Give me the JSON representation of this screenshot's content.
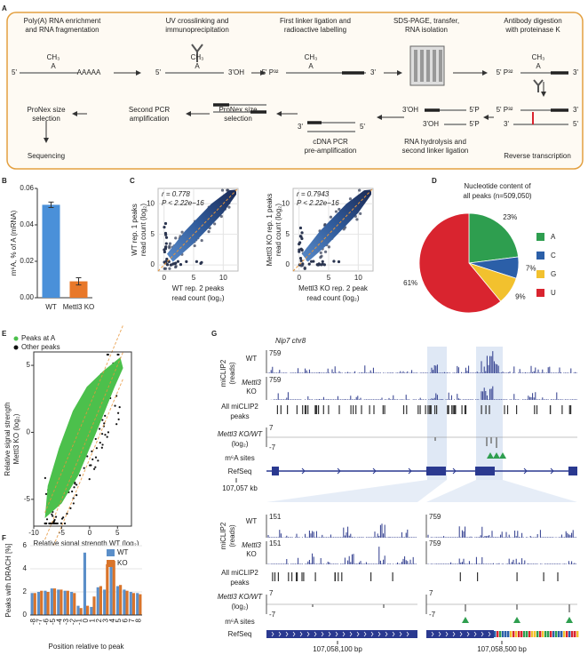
{
  "panel_labels": [
    "A",
    "B",
    "C",
    "D",
    "E",
    "F",
    "G"
  ],
  "workflow": {
    "steps": [
      [
        "Poly(A) RNA enrichment",
        "and RNA fragmentation"
      ],
      [
        "UV crosslinking and",
        "immunoprecipitation"
      ],
      [
        "First linker ligation and",
        "radioactive labelling"
      ],
      [
        "SDS-PAGE, transfer,",
        "RNA isolation"
      ],
      [
        "Antibody digestion",
        "with proteinase K"
      ],
      [
        "Reverse transcription"
      ],
      [
        "RNA hydrolysis and",
        "second linker ligation"
      ],
      [
        "cDNA PCR",
        "pre-amplification"
      ],
      [
        "ProNex size",
        "selection"
      ],
      [
        "Second PCR",
        "amplification"
      ],
      [
        "ProNex size",
        "selection"
      ],
      [
        "Sequencing"
      ]
    ],
    "molecule_labels": [
      "5'",
      "A",
      "CH₃",
      "AAAAA",
      "5'",
      "A",
      "CH₃",
      "3'OH",
      "5' P³²",
      "A",
      "CH₃",
      "3'",
      "5' P³²",
      "A",
      "CH₃",
      "3'",
      "5' P³²",
      "3'",
      "3'",
      "5'",
      "3'OH",
      "5'P",
      "3'OH",
      "5'P",
      "3'",
      "5'"
    ]
  },
  "chart_data": [
    {
      "type": "bar",
      "ylabel": "m⁶A, % of A (mRNA)",
      "categories": [
        "WT",
        "Mettl3 KO"
      ],
      "values": [
        0.051,
        0.009
      ],
      "errors": [
        0.0015,
        0.002
      ],
      "colors": [
        "#4a90d9",
        "#e8782a"
      ],
      "ylim": [
        0,
        0.06
      ],
      "yticks": [
        {
          "value": 0,
          "label": "0.00"
        },
        0.02,
        0.04,
        0.06
      ]
    },
    {
      "type": "density",
      "annotations": [
        "r = 0.778",
        "P < 2.22e−16"
      ],
      "ylabel": [
        "WT rep. 1 peaks",
        "read count (log₂)"
      ],
      "xlabel": [
        "WT rep. 2 peaks",
        "read count (log₂)"
      ],
      "xlim": [
        -1,
        12.5
      ],
      "ylim": [
        -1,
        12.5
      ],
      "xticks": [
        0,
        5,
        10
      ],
      "yticks": [
        0,
        5,
        10
      ],
      "grid": true
    },
    {
      "type": "density",
      "annotations": [
        "r = 0.7943",
        "P < 2.22e−16"
      ],
      "ylabel": [
        "Mettl3 KO rep. 1 peaks",
        "read count (log₂)"
      ],
      "xlabel": [
        "Mettl3 KO rep. 2 peak",
        "read count (log₂)"
      ],
      "xlim": [
        -1,
        12.5
      ],
      "ylim": [
        -1,
        12.5
      ],
      "xticks": [
        0,
        5,
        10
      ],
      "yticks": [
        0,
        5,
        10
      ],
      "grid": true
    },
    {
      "type": "pie",
      "title": [
        "Nucleotide content of",
        "all peaks (n=509,050)"
      ],
      "categories": [
        "A",
        "C",
        "G",
        "U"
      ],
      "values": [
        23,
        7,
        9,
        61
      ],
      "value_labels": [
        "23%",
        "7%",
        "9%",
        "61%"
      ],
      "colors": [
        "#2e9e4f",
        "#2b5fa8",
        "#f2c12e",
        "#d9242f"
      ]
    },
    {
      "type": "scatter-density",
      "legend_entries": [
        {
          "name": "Peaks at A",
          "color": "#4cc04c"
        },
        {
          "name": "Other peaks",
          "color": "#111111"
        }
      ],
      "xlabel": "Relative signal strength WT (log₂)",
      "ylabel": [
        "Relative signal strength",
        "Mettl3 KO (log₂)"
      ],
      "xlim": [
        -10,
        7.5
      ],
      "ylim": [
        -7,
        6
      ],
      "xticks": [
        -10,
        -5,
        0,
        5
      ],
      "yticks": [
        -5,
        0,
        5
      ]
    },
    {
      "type": "grouped_bar",
      "categories": [
        "-8",
        "-7",
        "-6",
        "-5",
        "-4",
        "-3",
        "-2",
        "-1",
        "0",
        "1",
        "2",
        "3",
        "4",
        "5",
        "6",
        "7",
        "8"
      ],
      "series": [
        {
          "name": "WT",
          "color": "#5b8fc9",
          "values": [
            1.9,
            2.0,
            2.1,
            2.3,
            2.2,
            2.1,
            2.0,
            0.8,
            5.4,
            0.7,
            2.4,
            2.2,
            4.5,
            2.5,
            2.2,
            2.0,
            1.9
          ]
        },
        {
          "name": "KO",
          "color": "#d9742a",
          "values": [
            1.9,
            2.1,
            2.0,
            2.3,
            2.2,
            2.1,
            1.9,
            0.6,
            0.8,
            1.6,
            2.5,
            4.4,
            4.7,
            2.6,
            2.1,
            1.9,
            1.8
          ]
        }
      ],
      "ylim": [
        0,
        6
      ],
      "yticks": [
        0,
        2,
        4,
        6
      ],
      "ylabel": "Peaks with DRACH [%]",
      "xlabel": "Position relative to peak",
      "grid": true,
      "legend": "upper right"
    }
  ],
  "genome_browser": {
    "title": "Nip7 chr8",
    "upper": {
      "reads_label": [
        "miCLIP2",
        "(reads)"
      ],
      "wt": "WT",
      "ko": [
        "Mettl3",
        "KO"
      ],
      "wt_max": "759",
      "ko_max": "759",
      "peaks_label": [
        "All miCLIP2",
        "peaks"
      ],
      "ratio_label": [
        "Mettl3 KO/WT",
        "(log₂)"
      ],
      "ratio_max": "7",
      "ratio_min": "-7",
      "m6a_label": "m⁶A sites",
      "refseq_label": "RefSeq",
      "coordinate": "107,057 kb"
    },
    "lower": {
      "reads_label": [
        "miCLIP2",
        "(reads)"
      ],
      "wt": "WT",
      "ko": [
        "Mettl3",
        "KO"
      ],
      "wt_max": [
        "151",
        "759"
      ],
      "ko_max": [
        "151",
        "759"
      ],
      "peaks_label": [
        "All miCLIP2",
        "peaks"
      ],
      "ratio_label": [
        "Mettl3 KO/WT",
        "(log₂)"
      ],
      "ratio_max": [
        "7",
        "7"
      ],
      "ratio_min": [
        "-7",
        "-7"
      ],
      "m6a_label": "m⁶A sites",
      "refseq_label": "RefSeq",
      "coordinates": [
        "107,058,100 bp",
        "107,058,500 bp"
      ]
    }
  }
}
